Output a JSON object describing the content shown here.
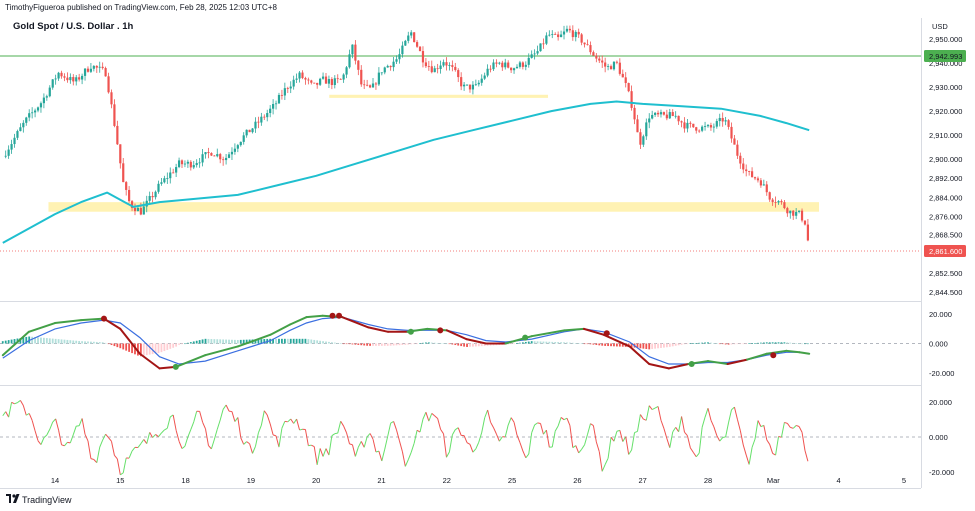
{
  "header": {
    "publisher": "TimothyFigueroa published on TradingView.com, Feb 28, 2025 12:03 UTC+8",
    "symbol_title": "Gold Spot / U.S. Dollar . 1h",
    "currency": "USD"
  },
  "footer": {
    "logo_text": "TradingView"
  },
  "colors": {
    "up": "#26a69a",
    "down": "#ef5350",
    "ma": "#1fbfcf",
    "zone": "#fff2b3",
    "hline": "#4caf50",
    "macd_fast": "#43a047",
    "macd_slow": "#3b6fe0",
    "macd_down": "#a31515",
    "osc_up": "#66e06a",
    "osc_down": "#ef5350"
  },
  "chart_data": [
    {
      "type": "candlestick",
      "title": "Gold Spot / U.S. Dollar . 1h",
      "ylim": [
        2842,
        2958
      ],
      "y_ticks": [
        "2,950.000",
        "2,940.000",
        "2,930.000",
        "2,920.000",
        "2,910.000",
        "2,900.000",
        "2,892.000",
        "2,884.000",
        "2,876.000",
        "2,868.500",
        "2,852.500",
        "2,844.500"
      ],
      "x_ticks": [
        "14",
        "15",
        "18",
        "19",
        "20",
        "21",
        "22",
        "25",
        "26",
        "27",
        "28",
        "Mar",
        "4",
        "5"
      ],
      "price_labels": [
        {
          "label": "2,942.993",
          "value": 2943,
          "style": "green"
        },
        {
          "label": "2,861.600",
          "value": 2861.6,
          "style": "red"
        }
      ],
      "horizontal_line": 2943,
      "last_price": 2861.6,
      "zones": [
        {
          "x0": -0.1,
          "x1": 11.7,
          "y0": 2878,
          "y1": 2882
        },
        {
          "x0": 4.2,
          "x1": 7.55,
          "y0": 2925.5,
          "y1": 2926.8
        }
      ],
      "ohlc_anchors": [
        [
          -0.8,
          2901
        ],
        [
          -0.45,
          2916
        ],
        [
          -0.2,
          2924
        ],
        [
          0.05,
          2936
        ],
        [
          0.3,
          2932
        ],
        [
          0.55,
          2939
        ],
        [
          0.78,
          2936
        ],
        [
          0.92,
          2913
        ],
        [
          1.05,
          2889
        ],
        [
          1.15,
          2881
        ],
        [
          1.32,
          2878
        ],
        [
          1.6,
          2889
        ],
        [
          1.9,
          2898
        ],
        [
          2.1,
          2898
        ],
        [
          2.4,
          2903
        ],
        [
          2.6,
          2900
        ],
        [
          2.8,
          2907
        ],
        [
          3.1,
          2915
        ],
        [
          3.35,
          2922
        ],
        [
          3.55,
          2930
        ],
        [
          3.75,
          2935
        ],
        [
          3.95,
          2930
        ],
        [
          4.1,
          2933
        ],
        [
          4.25,
          2932
        ],
        [
          4.4,
          2933
        ],
        [
          4.55,
          2947
        ],
        [
          4.7,
          2930
        ],
        [
          4.85,
          2929
        ],
        [
          5.0,
          2937
        ],
        [
          5.25,
          2942
        ],
        [
          5.45,
          2953
        ],
        [
          5.65,
          2941
        ],
        [
          5.8,
          2937
        ],
        [
          5.95,
          2941
        ],
        [
          6.1,
          2937
        ],
        [
          6.25,
          2930
        ],
        [
          6.45,
          2930
        ],
        [
          6.65,
          2938
        ],
        [
          6.8,
          2940
        ],
        [
          7.0,
          2938
        ],
        [
          7.2,
          2940
        ],
        [
          7.4,
          2945
        ],
        [
          7.55,
          2952
        ],
        [
          7.7,
          2950
        ],
        [
          7.85,
          2954
        ],
        [
          8.05,
          2950
        ],
        [
          8.3,
          2942
        ],
        [
          8.45,
          2938
        ],
        [
          8.6,
          2940
        ],
        [
          8.75,
          2930
        ],
        [
          8.85,
          2921
        ],
        [
          8.95,
          2906
        ],
        [
          9.1,
          2918
        ],
        [
          9.3,
          2918
        ],
        [
          9.5,
          2918
        ],
        [
          9.65,
          2914
        ],
        [
          9.85,
          2913
        ],
        [
          10.05,
          2913
        ],
        [
          10.25,
          2917
        ],
        [
          10.45,
          2902
        ],
        [
          10.6,
          2894
        ],
        [
          10.8,
          2891
        ],
        [
          10.95,
          2884
        ],
        [
          11.1,
          2882
        ],
        [
          11.25,
          2878
        ],
        [
          11.4,
          2877
        ],
        [
          11.5,
          2873
        ],
        [
          11.53,
          2866
        ],
        [
          11.56,
          2861.6
        ]
      ],
      "moving_average": [
        [
          -0.8,
          2865
        ],
        [
          -0.4,
          2871
        ],
        [
          0,
          2877
        ],
        [
          0.4,
          2882
        ],
        [
          0.8,
          2886
        ],
        [
          1.2,
          2880
        ],
        [
          1.6,
          2882
        ],
        [
          2.2,
          2883.5
        ],
        [
          2.8,
          2885
        ],
        [
          3.4,
          2889
        ],
        [
          4.0,
          2893
        ],
        [
          4.6,
          2898
        ],
        [
          5.2,
          2903
        ],
        [
          5.8,
          2908
        ],
        [
          6.4,
          2912
        ],
        [
          7.0,
          2916
        ],
        [
          7.6,
          2920
        ],
        [
          8.2,
          2923
        ],
        [
          8.6,
          2924
        ],
        [
          9.0,
          2923
        ],
        [
          9.6,
          2922
        ],
        [
          10.2,
          2921
        ],
        [
          10.8,
          2918
        ],
        [
          11.2,
          2915
        ],
        [
          11.55,
          2912
        ]
      ]
    },
    {
      "type": "line",
      "name": "macd",
      "ylim": [
        -27,
        27
      ],
      "y_ticks": [
        "20.000",
        "0.000",
        "-20.000"
      ],
      "fast": [
        [
          -0.8,
          -8
        ],
        [
          -0.4,
          8
        ],
        [
          0,
          14
        ],
        [
          0.4,
          16
        ],
        [
          0.75,
          17
        ],
        [
          1.0,
          10
        ],
        [
          1.3,
          -7
        ],
        [
          1.6,
          -17
        ],
        [
          1.85,
          -16
        ],
        [
          2.3,
          -8
        ],
        [
          2.8,
          -2
        ],
        [
          3.3,
          6
        ],
        [
          3.6,
          13
        ],
        [
          3.85,
          18
        ],
        [
          4.1,
          19
        ],
        [
          4.4,
          18
        ],
        [
          4.8,
          11
        ],
        [
          5.1,
          8
        ],
        [
          5.4,
          8
        ],
        [
          5.7,
          10
        ],
        [
          6.0,
          9
        ],
        [
          6.3,
          3
        ],
        [
          6.6,
          0
        ],
        [
          6.9,
          0
        ],
        [
          7.3,
          5
        ],
        [
          7.8,
          9
        ],
        [
          8.1,
          10
        ],
        [
          8.4,
          6
        ],
        [
          8.8,
          -2
        ],
        [
          9.1,
          -14
        ],
        [
          9.4,
          -17
        ],
        [
          9.7,
          -14
        ],
        [
          10.0,
          -12
        ],
        [
          10.3,
          -14
        ],
        [
          10.6,
          -11
        ],
        [
          10.9,
          -7
        ],
        [
          11.2,
          -5
        ],
        [
          11.4,
          -6
        ],
        [
          11.55,
          -7
        ]
      ],
      "slow": [
        [
          -0.8,
          -10
        ],
        [
          -0.4,
          2
        ],
        [
          0,
          10
        ],
        [
          0.4,
          14
        ],
        [
          0.75,
          16
        ],
        [
          1.0,
          14
        ],
        [
          1.3,
          4
        ],
        [
          1.6,
          -9
        ],
        [
          1.9,
          -14
        ],
        [
          2.3,
          -12
        ],
        [
          2.8,
          -5
        ],
        [
          3.3,
          2
        ],
        [
          3.6,
          9
        ],
        [
          3.85,
          14
        ],
        [
          4.1,
          17
        ],
        [
          4.4,
          18
        ],
        [
          4.8,
          13
        ],
        [
          5.1,
          10
        ],
        [
          5.4,
          9
        ],
        [
          5.7,
          9
        ],
        [
          6.0,
          9
        ],
        [
          6.3,
          6
        ],
        [
          6.6,
          2
        ],
        [
          6.9,
          1
        ],
        [
          7.3,
          3
        ],
        [
          7.8,
          8
        ],
        [
          8.1,
          10
        ],
        [
          8.4,
          8
        ],
        [
          8.8,
          1
        ],
        [
          9.1,
          -9
        ],
        [
          9.4,
          -14
        ],
        [
          9.7,
          -14
        ],
        [
          10.0,
          -13
        ],
        [
          10.3,
          -13
        ],
        [
          10.6,
          -11
        ],
        [
          10.9,
          -8
        ],
        [
          11.2,
          -6
        ],
        [
          11.4,
          -6
        ],
        [
          11.55,
          -7
        ]
      ],
      "markers": [
        {
          "x": 0.75,
          "y": 17,
          "cross": "down"
        },
        {
          "x": 1.85,
          "y": -16,
          "cross": "up"
        },
        {
          "x": 4.25,
          "y": 19,
          "cross": "down"
        },
        {
          "x": 4.35,
          "y": 19,
          "cross": "down"
        },
        {
          "x": 5.45,
          "y": 8,
          "cross": "up"
        },
        {
          "x": 5.9,
          "y": 9,
          "cross": "down"
        },
        {
          "x": 7.2,
          "y": 4,
          "cross": "up"
        },
        {
          "x": 8.45,
          "y": 7,
          "cross": "down"
        },
        {
          "x": 9.75,
          "y": -14,
          "cross": "up"
        },
        {
          "x": 11.0,
          "y": -8,
          "cross": "down"
        }
      ]
    },
    {
      "type": "line",
      "name": "oscillator",
      "ylim": [
        -28,
        28
      ],
      "y_ticks": [
        "20.000",
        "0.000",
        "-20.000"
      ],
      "seed_points": [
        [
          -0.8,
          12
        ],
        [
          -0.6,
          18
        ],
        [
          -0.4,
          15
        ],
        [
          -0.2,
          -5
        ],
        [
          0,
          8
        ],
        [
          0.2,
          -8
        ],
        [
          0.4,
          10
        ],
        [
          0.6,
          -14
        ],
        [
          0.8,
          5
        ],
        [
          1.0,
          -18
        ],
        [
          1.2,
          -10
        ],
        [
          1.4,
          -3
        ],
        [
          1.6,
          5
        ],
        [
          1.8,
          12
        ],
        [
          2.0,
          -8
        ],
        [
          2.2,
          14
        ],
        [
          2.4,
          -6
        ],
        [
          2.6,
          18
        ],
        [
          2.8,
          8
        ],
        [
          3.0,
          -10
        ],
        [
          3.2,
          16
        ],
        [
          3.4,
          -4
        ],
        [
          3.6,
          12
        ],
        [
          3.8,
          6
        ],
        [
          4.0,
          -12
        ],
        [
          4.2,
          -6
        ],
        [
          4.4,
          10
        ],
        [
          4.6,
          -14
        ],
        [
          4.8,
          4
        ],
        [
          5.0,
          -12
        ],
        [
          5.2,
          12
        ],
        [
          5.4,
          -18
        ],
        [
          5.6,
          8
        ],
        [
          5.8,
          15
        ],
        [
          6.0,
          -8
        ],
        [
          6.2,
          6
        ],
        [
          6.4,
          -10
        ],
        [
          6.6,
          14
        ],
        [
          6.8,
          -6
        ],
        [
          7.0,
          10
        ],
        [
          7.2,
          -14
        ],
        [
          7.4,
          12
        ],
        [
          7.6,
          -6
        ],
        [
          7.8,
          14
        ],
        [
          8.0,
          -10
        ],
        [
          8.2,
          8
        ],
        [
          8.4,
          -18
        ],
        [
          8.6,
          6
        ],
        [
          8.8,
          -8
        ],
        [
          9.0,
          12
        ],
        [
          9.2,
          18
        ],
        [
          9.4,
          -6
        ],
        [
          9.6,
          12
        ],
        [
          9.8,
          -14
        ],
        [
          10.0,
          14
        ],
        [
          10.2,
          -6
        ],
        [
          10.4,
          16
        ],
        [
          10.6,
          -16
        ],
        [
          10.8,
          10
        ],
        [
          11.0,
          -10
        ],
        [
          11.2,
          12
        ],
        [
          11.4,
          4
        ],
        [
          11.55,
          -12
        ]
      ]
    }
  ]
}
